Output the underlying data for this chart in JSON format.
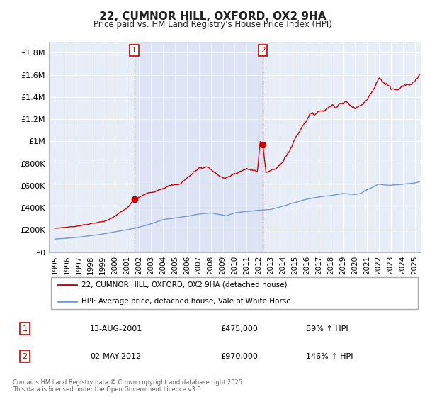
{
  "title": "22, CUMNOR HILL, OXFORD, OX2 9HA",
  "subtitle": "Price paid vs. HM Land Registry's House Price Index (HPI)",
  "background_color": "#ffffff",
  "plot_bg_color": "#e8eef8",
  "grid_color": "#ffffff",
  "line1_color": "#cc0000",
  "line2_color": "#7799cc",
  "sale1_date_x": 2001.62,
  "sale1_price": 475000,
  "sale1_label": "1",
  "sale2_date_x": 2012.34,
  "sale2_price": 970000,
  "sale2_label": "2",
  "vline1_color": "#aaaaaa",
  "vline2_color": "#cc4444",
  "shaded_x1": 2001.62,
  "shaded_x2": 2012.34,
  "ylim": [
    0,
    1900000
  ],
  "xlim": [
    1994.5,
    2025.5
  ],
  "yticks": [
    0,
    200000,
    400000,
    600000,
    800000,
    1000000,
    1200000,
    1400000,
    1600000,
    1800000
  ],
  "ytick_labels": [
    "£0",
    "£200K",
    "£400K",
    "£600K",
    "£800K",
    "£1M",
    "£1.2M",
    "£1.4M",
    "£1.6M",
    "£1.8M"
  ],
  "legend_label1": "22, CUMNOR HILL, OXFORD, OX2 9HA (detached house)",
  "legend_label2": "HPI: Average price, detached house, Vale of White Horse",
  "table_row1": [
    "1",
    "13-AUG-2001",
    "£475,000",
    "89% ↑ HPI"
  ],
  "table_row2": [
    "2",
    "02-MAY-2012",
    "£970,000",
    "146% ↑ HPI"
  ],
  "footnote": "Contains HM Land Registry data © Crown copyright and database right 2025.\nThis data is licensed under the Open Government Licence v3.0.",
  "xticks": [
    1995,
    1996,
    1997,
    1998,
    1999,
    2000,
    2001,
    2002,
    2003,
    2004,
    2005,
    2006,
    2007,
    2008,
    2009,
    2010,
    2011,
    2012,
    2013,
    2014,
    2015,
    2016,
    2017,
    2018,
    2019,
    2020,
    2021,
    2022,
    2023,
    2024,
    2025
  ],
  "red_keypoints_t": [
    1995.0,
    1996.5,
    1998.0,
    1999.5,
    2001.0,
    2001.62,
    2002.5,
    2004.0,
    2005.5,
    2007.0,
    2007.8,
    2008.5,
    2009.2,
    2009.8,
    2010.5,
    2011.0,
    2011.5,
    2011.9,
    2012.1,
    2012.34,
    2012.6,
    2013.0,
    2013.5,
    2014.0,
    2014.5,
    2015.0,
    2015.5,
    2016.0,
    2016.5,
    2017.0,
    2017.5,
    2018.0,
    2018.5,
    2019.0,
    2019.5,
    2020.0,
    2020.5,
    2021.0,
    2021.5,
    2022.0,
    2022.5,
    2023.0,
    2023.5,
    2024.0,
    2024.5,
    2025.0,
    2025.4
  ],
  "red_keypoints_v": [
    215000,
    230000,
    255000,
    290000,
    395000,
    475000,
    520000,
    580000,
    620000,
    760000,
    770000,
    700000,
    660000,
    700000,
    730000,
    750000,
    735000,
    730000,
    1020000,
    970000,
    720000,
    730000,
    760000,
    820000,
    900000,
    1020000,
    1120000,
    1200000,
    1250000,
    1270000,
    1290000,
    1320000,
    1330000,
    1350000,
    1340000,
    1290000,
    1340000,
    1390000,
    1450000,
    1560000,
    1540000,
    1490000,
    1460000,
    1500000,
    1510000,
    1540000,
    1600000
  ],
  "blue_keypoints_t": [
    1995.0,
    1996.0,
    1997.0,
    1998.0,
    1999.0,
    2000.0,
    2001.0,
    2002.0,
    2003.0,
    2004.0,
    2005.0,
    2006.0,
    2007.0,
    2008.0,
    2008.7,
    2009.3,
    2010.0,
    2011.0,
    2012.0,
    2013.0,
    2014.0,
    2015.0,
    2016.0,
    2017.0,
    2018.0,
    2019.0,
    2020.0,
    2020.5,
    2021.0,
    2022.0,
    2023.0,
    2024.0,
    2025.0,
    2025.4
  ],
  "blue_keypoints_v": [
    118000,
    125000,
    135000,
    148000,
    163000,
    183000,
    202000,
    225000,
    255000,
    293000,
    308000,
    323000,
    343000,
    355000,
    340000,
    328000,
    355000,
    367000,
    377000,
    385000,
    413000,
    448000,
    478000,
    498000,
    512000,
    528000,
    520000,
    528000,
    562000,
    615000,
    603000,
    612000,
    625000,
    640000
  ]
}
